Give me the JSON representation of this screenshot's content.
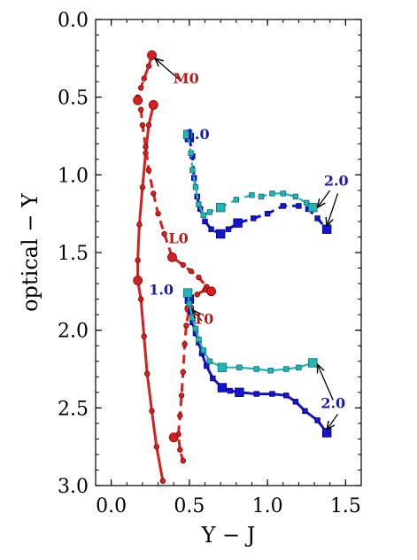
{
  "chart_data": {
    "type": "line",
    "xlabel": "Y − J",
    "ylabel": "optical − Y",
    "xlim": [
      -0.1,
      1.6
    ],
    "ylim": [
      3.0,
      0.0
    ],
    "y_inverted": true,
    "x_ticks": [
      "0.0",
      "0.5",
      "1.0",
      "1.5"
    ],
    "x_tick_values": [
      0.0,
      0.5,
      1.0,
      1.5
    ],
    "y_ticks": [
      "0.0",
      "0.5",
      "1.0",
      "1.5",
      "2.0",
      "2.5",
      "3.0"
    ],
    "y_tick_values": [
      0.0,
      0.5,
      1.0,
      1.5,
      2.0,
      2.5,
      3.0
    ],
    "grid": false,
    "colors": {
      "red": "#d42020",
      "red_edge": "#8a0000",
      "blue": "#1414d2",
      "cyan": "#22b5b5",
      "cyan_edge": "#0e6e6e",
      "arrow": "#000000",
      "label_red": "#b81a1a",
      "label_blue": "#1a1aa8"
    },
    "series": [
      {
        "color": "red",
        "style": "solid",
        "marker": "circle",
        "points": [
          [
            0.33,
            2.97
          ],
          [
            0.29,
            2.75
          ],
          [
            0.26,
            2.52
          ],
          [
            0.23,
            2.28
          ],
          [
            0.21,
            2.04
          ],
          [
            0.19,
            1.8
          ],
          [
            0.17,
            1.68
          ],
          [
            0.17,
            1.55
          ],
          [
            0.18,
            1.32
          ],
          [
            0.2,
            1.08
          ],
          [
            0.22,
            0.86
          ],
          [
            0.24,
            0.68
          ],
          [
            0.27,
            0.55
          ]
        ],
        "big": [
          [
            0.17,
            1.68
          ],
          [
            0.27,
            0.55
          ]
        ]
      },
      {
        "color": "red",
        "style": "dashed",
        "marker": "circle",
        "points": [
          [
            0.26,
            0.23
          ],
          [
            0.24,
            0.3
          ],
          [
            0.21,
            0.38
          ],
          [
            0.19,
            0.44
          ],
          [
            0.17,
            0.5
          ],
          [
            0.17,
            0.52
          ],
          [
            0.19,
            0.58
          ],
          [
            0.2,
            0.68
          ],
          [
            0.22,
            0.82
          ],
          [
            0.24,
            0.97
          ],
          [
            0.27,
            1.12
          ],
          [
            0.3,
            1.25
          ],
          [
            0.34,
            1.38
          ],
          [
            0.39,
            1.53
          ],
          [
            0.46,
            1.58
          ],
          [
            0.51,
            1.62
          ],
          [
            0.56,
            1.66
          ],
          [
            0.61,
            1.72
          ],
          [
            0.64,
            1.75
          ],
          [
            0.6,
            1.74
          ],
          [
            0.55,
            1.77
          ],
          [
            0.51,
            1.8
          ],
          [
            0.5,
            1.86
          ],
          [
            0.48,
            1.97
          ],
          [
            0.47,
            2.09
          ],
          [
            0.46,
            2.27
          ],
          [
            0.45,
            2.42
          ],
          [
            0.44,
            2.55
          ],
          [
            0.43,
            2.67
          ],
          [
            0.44,
            2.77
          ],
          [
            0.46,
            2.84
          ]
        ],
        "big": [
          [
            0.26,
            0.23
          ],
          [
            0.17,
            0.52
          ],
          [
            0.39,
            1.53
          ],
          [
            0.64,
            1.75
          ],
          [
            0.5,
            1.86
          ],
          [
            0.4,
            2.69
          ]
        ]
      },
      {
        "color": "blue",
        "style": "solid",
        "marker": "square",
        "points": [
          [
            0.5,
            1.8
          ],
          [
            0.51,
            1.88
          ],
          [
            0.52,
            1.95
          ],
          [
            0.54,
            2.02
          ],
          [
            0.56,
            2.08
          ],
          [
            0.58,
            2.15
          ],
          [
            0.61,
            2.23
          ],
          [
            0.65,
            2.31
          ],
          [
            0.71,
            2.37
          ],
          [
            0.76,
            2.39
          ],
          [
            0.82,
            2.4
          ],
          [
            0.93,
            2.41
          ],
          [
            1.03,
            2.41
          ],
          [
            1.12,
            2.42
          ],
          [
            1.18,
            2.46
          ],
          [
            1.24,
            2.52
          ],
          [
            1.32,
            2.58
          ],
          [
            1.38,
            2.66
          ]
        ],
        "big": [
          [
            0.5,
            1.8
          ],
          [
            0.71,
            2.37
          ],
          [
            0.82,
            2.4
          ],
          [
            1.38,
            2.66
          ]
        ]
      },
      {
        "color": "cyan",
        "style": "solid",
        "marker": "square",
        "points": [
          [
            0.49,
            1.76
          ],
          [
            0.5,
            1.83
          ],
          [
            0.52,
            1.92
          ],
          [
            0.54,
            1.99
          ],
          [
            0.56,
            2.06
          ],
          [
            0.59,
            2.13
          ],
          [
            0.63,
            2.2
          ],
          [
            0.71,
            2.24
          ],
          [
            0.82,
            2.24
          ],
          [
            0.93,
            2.25
          ],
          [
            1.02,
            2.26
          ],
          [
            1.12,
            2.25
          ],
          [
            1.2,
            2.24
          ],
          [
            1.29,
            2.21
          ]
        ],
        "big": [
          [
            0.49,
            1.76
          ],
          [
            0.71,
            2.24
          ],
          [
            1.29,
            2.21
          ]
        ]
      },
      {
        "color": "blue",
        "style": "dashed",
        "marker": "square",
        "points": [
          [
            0.5,
            0.76
          ],
          [
            0.52,
            0.88
          ],
          [
            0.53,
            1.02
          ],
          [
            0.55,
            1.14
          ],
          [
            0.57,
            1.22
          ],
          [
            0.6,
            1.3
          ],
          [
            0.64,
            1.35
          ],
          [
            0.7,
            1.38
          ],
          [
            0.75,
            1.35
          ],
          [
            0.81,
            1.31
          ],
          [
            0.91,
            1.28
          ],
          [
            1.0,
            1.25
          ],
          [
            1.1,
            1.2
          ],
          [
            1.2,
            1.2
          ],
          [
            1.26,
            1.22
          ],
          [
            1.32,
            1.28
          ],
          [
            1.38,
            1.35
          ]
        ],
        "big": [
          [
            0.5,
            0.76
          ],
          [
            0.7,
            1.38
          ],
          [
            0.81,
            1.31
          ],
          [
            1.38,
            1.35
          ]
        ]
      },
      {
        "color": "cyan",
        "style": "dashed",
        "marker": "square",
        "points": [
          [
            0.49,
            0.74
          ],
          [
            0.51,
            0.86
          ],
          [
            0.52,
            0.97
          ],
          [
            0.54,
            1.08
          ],
          [
            0.56,
            1.19
          ],
          [
            0.59,
            1.26
          ],
          [
            0.63,
            1.24
          ],
          [
            0.7,
            1.21
          ],
          [
            0.8,
            1.16
          ],
          [
            0.9,
            1.13
          ],
          [
            0.96,
            1.14
          ],
          [
            1.03,
            1.12
          ],
          [
            1.1,
            1.12
          ],
          [
            1.18,
            1.14
          ],
          [
            1.25,
            1.18
          ],
          [
            1.29,
            1.21
          ]
        ],
        "big": [
          [
            0.49,
            0.74
          ],
          [
            0.7,
            1.21
          ],
          [
            1.29,
            1.21
          ]
        ]
      }
    ],
    "annotations": [
      {
        "text": "M0",
        "color": "label_red",
        "text_at": [
          0.48,
          0.41
        ],
        "arrow_to": [
          0.28,
          0.25
        ],
        "arrow_from": [
          0.45,
          0.4
        ]
      },
      {
        "text": "L0",
        "color": "label_red",
        "text_at": [
          0.43,
          1.44
        ],
        "arrow_to": null
      },
      {
        "text": "T0",
        "color": "label_red",
        "text_at": [
          0.59,
          1.96
        ],
        "arrow_to": [
          0.52,
          1.87
        ],
        "arrow_from": [
          0.58,
          1.94
        ]
      },
      {
        "text": "1.0",
        "color": "label_blue",
        "text_at": [
          0.55,
          0.77
        ],
        "arrow_to": null
      },
      {
        "text": "1.0",
        "color": "label_blue",
        "text_at": [
          0.32,
          1.77
        ],
        "arrow_to": null
      },
      {
        "text": "2.0",
        "color": "label_blue",
        "text_at": [
          1.44,
          1.07
        ],
        "arrow_to": [
          1.38,
          1.33
        ],
        "arrow_from": [
          1.45,
          1.12
        ]
      },
      {
        "text": "2.0",
        "color": "label_blue",
        "text_at": [
          1.42,
          2.5
        ],
        "arrow_to": [
          1.38,
          2.64
        ],
        "arrow_from": [
          1.45,
          2.54
        ]
      },
      {
        "text": "",
        "color": "arrow",
        "text_at": null,
        "arrow_to": [
          1.32,
          1.21
        ],
        "arrow_from": [
          1.4,
          1.1
        ]
      },
      {
        "text": "",
        "color": "arrow",
        "text_at": null,
        "arrow_to": [
          1.32,
          2.22
        ],
        "arrow_from": [
          1.42,
          2.45
        ]
      }
    ]
  }
}
